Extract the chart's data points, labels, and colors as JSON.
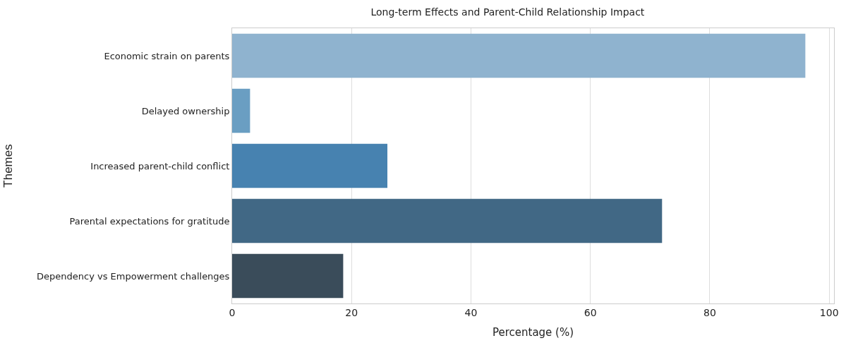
{
  "chart_data": {
    "type": "bar",
    "orientation": "horizontal",
    "title": "Long-term Effects and Parent-Child Relationship Impact",
    "xlabel": "Percentage (%)",
    "ylabel": "Themes",
    "categories": [
      "Economic strain on parents",
      "Delayed ownership",
      "Increased parent-child conflict",
      "Parental expectations for gratitude",
      "Dependency vs Empowerment challenges"
    ],
    "values": [
      96,
      3,
      26,
      72,
      18.6
    ],
    "colors": [
      "#8fb3cf",
      "#6a9ec2",
      "#4782b0",
      "#416885",
      "#3a4c5a"
    ],
    "xlim": [
      0,
      100.8
    ],
    "xticks": [
      0,
      20,
      40,
      60,
      80,
      100
    ],
    "grid": "x",
    "legend": false
  }
}
